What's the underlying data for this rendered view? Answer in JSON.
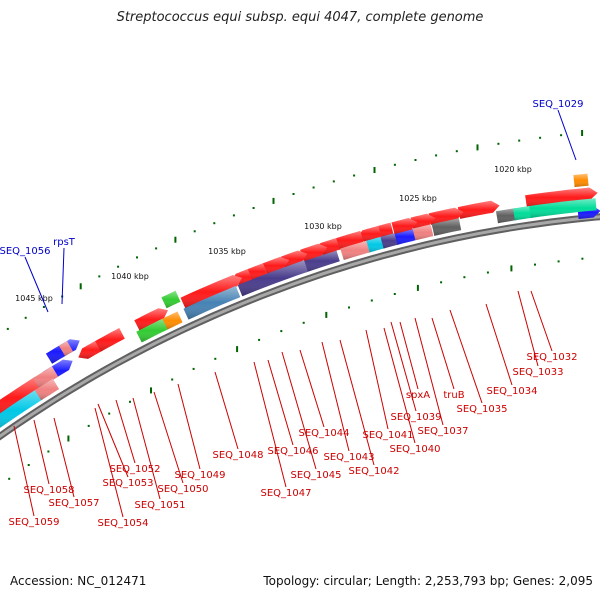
{
  "title": "Streptococcus equi subsp. equi 4047, complete genome",
  "footer": {
    "accession": "Accession: NC_012471",
    "topology": "Topology: circular; Length: 2,253,793 bp; Genes: 2,095"
  },
  "colors": {
    "backbone": "#808080",
    "gene_red": "#ff1a1a",
    "gene_pink": "#f08080",
    "gene_blue": "#1a1aff",
    "gene_orange": "#ff8c00",
    "gene_cyan": "#00c8e6",
    "gene_green": "#33cc33",
    "gene_mint": "#00dd99",
    "gene_navy": "#4a3c8c",
    "gene_steel": "#4682b4",
    "gene_gray": "#606060",
    "tick": "#006400",
    "label_red": "#cc0000",
    "label_blue": "#0000cc"
  },
  "scale_labels": [
    "1020 kbp",
    "1025 kbp",
    "1030 kbp",
    "1035 kbp",
    "1040 kbp",
    "1045 kbp"
  ],
  "gene_labels": [
    "SEQ_1029",
    "SEQ_1032",
    "SEQ_1033",
    "SEQ_1034",
    "SEQ_1035",
    "truB",
    "spxA",
    "SEQ_1037",
    "SEQ_1039",
    "SEQ_1040",
    "SEQ_1041",
    "SEQ_1042",
    "SEQ_1043",
    "SEQ_1044",
    "SEQ_1045",
    "SEQ_1046",
    "SEQ_1047",
    "SEQ_1048",
    "SEQ_1049",
    "SEQ_1050",
    "SEQ_1051",
    "SEQ_1052",
    "SEQ_1053",
    "SEQ_1054",
    "SEQ_1056",
    "rpsT",
    "SEQ_1057",
    "SEQ_1058",
    "SEQ_1059"
  ]
}
